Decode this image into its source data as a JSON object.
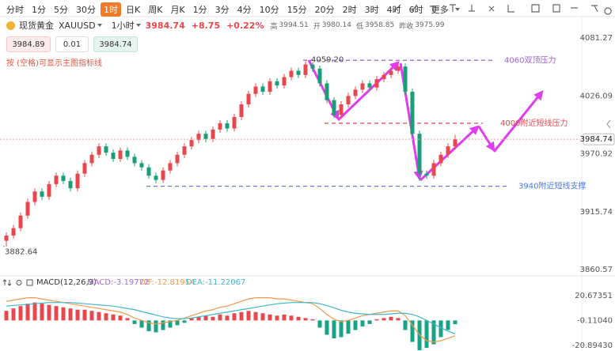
{
  "toolbar": {
    "periods": [
      "分时",
      "1分",
      "5分",
      "30分",
      "1时",
      "日K",
      "周K",
      "月K",
      "1分",
      "3分",
      "4分",
      "10分",
      "15分",
      "20分",
      "2时",
      "3时",
      "4时",
      "6时"
    ],
    "active": 4,
    "more": "更多"
  },
  "quote": {
    "name": "现货黄金",
    "symbol": "XAUUSD",
    "period": "1小时",
    "price": "3984.74",
    "change": "+8.75",
    "change_pct": "+0.22%",
    "high_label": "高",
    "high": "3994.51",
    "open_label": "开",
    "open": "3980.14",
    "low_label": "低",
    "low": "3958.85",
    "prev_close_label": "昨收",
    "prev_close": "3975.99"
  },
  "order": {
    "sell": "3984.89",
    "lot": "0.01",
    "buy": "3984.74"
  },
  "hint": "按 (空格)可显示主图指标线",
  "chart_data": [
    {
      "type": "candlestick",
      "up_color": "#e8474c",
      "down_color": "#1a9e78",
      "open": [
        3888,
        3893,
        3900,
        3912,
        3925,
        3935,
        3930,
        3942,
        3950,
        3945,
        3938,
        3952,
        3962,
        3970,
        3978,
        3972,
        3966,
        3974,
        3968,
        3962,
        3958,
        3950,
        3946,
        3955,
        3962,
        3970,
        3978,
        3984,
        3990,
        3985,
        3994,
        4000,
        3995,
        4006,
        4018,
        4028,
        4035,
        4030,
        4040,
        4036,
        4044,
        4050,
        4046,
        4056,
        4052,
        4038,
        4022,
        4008,
        4018,
        4026,
        4032,
        4038,
        4034,
        4042,
        4046,
        4050,
        4054,
        4030,
        3990,
        3952,
        3950,
        3962,
        3970,
        3978
      ],
      "high": [
        3896,
        3903,
        3915,
        3928,
        3938,
        3938,
        3945,
        3953,
        3953,
        3948,
        3955,
        3965,
        3973,
        3981,
        3981,
        3975,
        3977,
        3977,
        3971,
        3965,
        3961,
        3953,
        3958,
        3965,
        3973,
        3981,
        3987,
        3993,
        3993,
        3997,
        4003,
        4003,
        4009,
        4021,
        4031,
        4038,
        4038,
        4043,
        4043,
        4047,
        4053,
        4053,
        4059.2,
        4058,
        4055,
        4041,
        4025,
        4021,
        4029,
        4035,
        4041,
        4041,
        4045,
        4049,
        4053,
        4057,
        4057,
        4033,
        3993,
        3955,
        3965,
        3973,
        3981,
        3989
      ],
      "low": [
        3882.64,
        3890,
        3897,
        3909,
        3922,
        3927,
        3927,
        3939,
        3942,
        3935,
        3935,
        3949,
        3959,
        3967,
        3969,
        3963,
        3963,
        3965,
        3959,
        3955,
        3947,
        3943,
        3943,
        3952,
        3959,
        3967,
        3975,
        3981,
        3982,
        3982,
        3991,
        3992,
        3992,
        4003,
        4015,
        4025,
        4027,
        4027,
        4033,
        4033,
        4041,
        4043,
        4043,
        4049,
        4035,
        4019,
        4005,
        4005,
        4015,
        4023,
        4029,
        4031,
        4031,
        4039,
        4043,
        4047,
        4027,
        3987,
        3945,
        3947,
        3947,
        3959,
        3967,
        3975
      ],
      "close": [
        3893,
        3900,
        3912,
        3925,
        3935,
        3930,
        3942,
        3950,
        3945,
        3938,
        3952,
        3962,
        3970,
        3978,
        3972,
        3966,
        3974,
        3968,
        3962,
        3958,
        3950,
        3946,
        3955,
        3962,
        3970,
        3978,
        3984,
        3990,
        3985,
        3994,
        4000,
        3995,
        4006,
        4018,
        4028,
        4035,
        4030,
        4040,
        4036,
        4044,
        4050,
        4046,
        4056,
        4052,
        4038,
        4022,
        4008,
        4018,
        4026,
        4032,
        4038,
        4034,
        4042,
        4046,
        4050,
        4054,
        4030,
        3990,
        3952,
        3950,
        3962,
        3970,
        3978,
        3984.74
      ],
      "ylim": [
        3855.3,
        4085.8
      ],
      "yticks": [
        4081.27,
        4026.09,
        3970.92,
        3915.74,
        3860.57
      ],
      "levels": [
        {
          "value": 4060,
          "label": "4060双顶压力",
          "color": "#9a62d6"
        },
        {
          "value": 4000,
          "label": "4000附近短线压力",
          "color": "#e8474c"
        },
        {
          "value": 3940,
          "label": "3940附近短线支撑",
          "color": "#4a7be8"
        }
      ],
      "extremes": [
        {
          "value": 4059.2,
          "label": "4059.20"
        },
        {
          "value": 3882.64,
          "label": "3882.64"
        }
      ]
    },
    {
      "type": "macd",
      "title": "MACD(12,26,9)",
      "up_color": "#e8474c",
      "down_color": "#17a386",
      "ylim": [
        -25.6,
        26.7
      ],
      "yticks": [
        20.67351,
        {
          "value": -0.1104,
          "label": "-0.11040"
        },
        {
          "value": -20.8943,
          "label": "-20.89430"
        }
      ],
      "series": [
        {
          "name": "MACD:-3.19772",
          "color": "#a26ae0",
          "values": [
            8,
            10,
            12,
            14,
            15,
            14,
            13,
            12,
            11,
            10,
            9,
            9,
            8,
            7,
            6,
            5,
            4,
            2,
            -3,
            -6,
            -9,
            -10,
            -8,
            -6,
            -4,
            -2,
            2,
            3,
            4,
            3,
            5,
            4,
            6,
            7,
            8,
            7,
            6,
            5,
            4,
            5,
            4,
            3,
            2,
            1,
            -6,
            -12,
            -15,
            -14,
            -11,
            -8,
            -5,
            -3,
            1,
            2,
            3,
            2,
            -8,
            -18,
            -25,
            -23,
            -20,
            -14,
            -8,
            -3.19772
          ]
        },
        {
          "name": "DIF:-12.81954",
          "color": "#f0994a",
          "values": [
            16,
            17,
            18,
            19,
            19,
            18,
            17,
            16,
            15,
            14,
            13,
            12,
            11,
            10,
            9,
            8,
            7,
            5,
            2,
            0,
            -2,
            -3,
            -2,
            -1,
            0,
            2,
            4,
            6,
            8,
            9,
            11,
            12,
            14,
            16,
            18,
            19,
            19,
            19,
            18,
            18,
            17,
            16,
            15,
            14,
            10,
            5,
            1,
            -1,
            0,
            2,
            4,
            5,
            6,
            7,
            8,
            8,
            4,
            -4,
            -12,
            -17,
            -18,
            -17,
            -15,
            -12.81954
          ]
        },
        {
          "name": "DEA:-11.22067",
          "color": "#3fb6c9",
          "values": [
            12,
            12.5,
            13,
            13.5,
            14,
            14.5,
            15,
            15,
            15,
            15,
            14.5,
            14,
            13.5,
            13,
            12.5,
            12,
            11,
            10,
            9,
            7.5,
            6,
            4.5,
            3,
            2,
            1.5,
            1.5,
            2,
            3,
            4,
            5,
            6,
            7,
            8,
            9,
            10,
            11,
            12,
            13,
            14,
            14.5,
            15,
            15,
            15,
            15,
            14,
            12.5,
            10.5,
            8.5,
            7,
            6,
            5.5,
            5,
            5,
            5,
            5.5,
            6,
            6,
            5,
            3,
            0,
            -3,
            -6,
            -9,
            -11.22067
          ]
        }
      ]
    }
  ]
}
